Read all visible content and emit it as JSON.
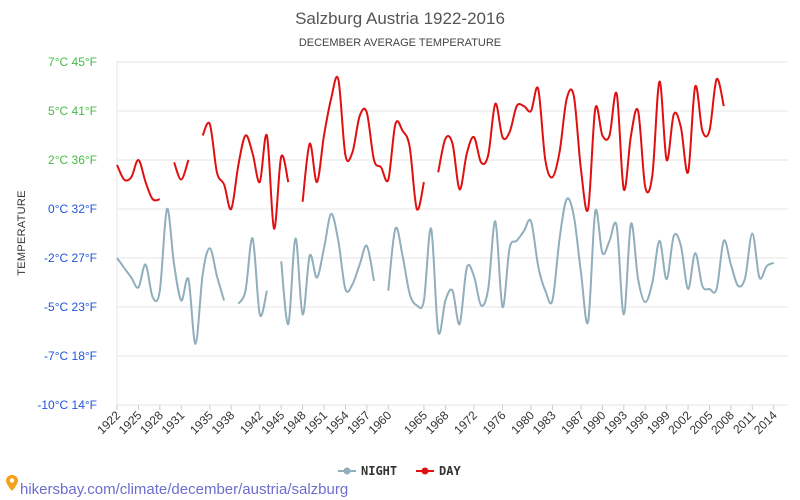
{
  "chart_data": {
    "type": "line",
    "title": "Salzburg Austria 1922-2016",
    "subtitle": "DECEMBER AVERAGE TEMPERATURE",
    "ylabel": "TEMPERATURE",
    "xlabel": "",
    "ylim": [
      -10,
      7
    ],
    "xlim": [
      1922,
      2016
    ],
    "grid": true,
    "legend_position": "bottom-center",
    "y_ticks": [
      {
        "value": 7,
        "label": "7°C 45°F",
        "color": "#44bb44"
      },
      {
        "value": 5,
        "label": "5°C 41°F",
        "color": "#44bb44"
      },
      {
        "value": 2,
        "label": "2°C 36°F",
        "color": "#44bb44"
      },
      {
        "value": 0,
        "label": "0°C 32°F",
        "color": "#2255dd"
      },
      {
        "value": -2,
        "label": "-2°C 27°F",
        "color": "#2255dd"
      },
      {
        "value": -5,
        "label": "-5°C 23°F",
        "color": "#2255dd"
      },
      {
        "value": -7,
        "label": "-7°C 18°F",
        "color": "#2255dd"
      },
      {
        "value": -10,
        "label": "-10°C 14°F",
        "color": "#2255dd"
      }
    ],
    "x_ticks": [
      "1922",
      "1925",
      "1928",
      "1931",
      "1935",
      "1938",
      "1942",
      "1945",
      "1948",
      "1951",
      "1954",
      "1957",
      "1960",
      "1965",
      "1968",
      "1972",
      "1976",
      "1980",
      "1983",
      "1987",
      "1990",
      "1993",
      "1996",
      "1999",
      "2002",
      "2005",
      "2008",
      "2011",
      "2014"
    ],
    "series": [
      {
        "name": "NIGHT",
        "color": "#90aebb",
        "points": [
          [
            1922,
            -2
          ],
          [
            1923,
            -2.6
          ],
          [
            1924,
            -3.2
          ],
          [
            1925,
            -3.8
          ],
          [
            1926,
            -2.4
          ],
          [
            1927,
            -4.4
          ],
          [
            1928,
            -4
          ],
          [
            1929,
            0
          ],
          [
            1930,
            -2.4
          ],
          [
            1931,
            -4.6
          ],
          [
            1932,
            -3.3
          ],
          [
            1933,
            -6.5
          ],
          [
            1934,
            -3
          ],
          [
            1935,
            -1.6
          ],
          [
            1936,
            -3.1
          ],
          [
            1937,
            -4.6
          ],
          null,
          [
            1939,
            -4.8
          ],
          [
            1940,
            -4
          ],
          [
            1941,
            -1.2
          ],
          [
            1942,
            -5.3
          ],
          [
            1943,
            -4
          ],
          null,
          [
            1945,
            -2.2
          ],
          [
            1946,
            -5.7
          ],
          [
            1947,
            -1.2
          ],
          [
            1948,
            -5.3
          ],
          [
            1949,
            -1.9
          ],
          [
            1950,
            -3.2
          ],
          [
            1951,
            -1.6
          ],
          [
            1952,
            -0.2
          ],
          [
            1953,
            -1.3
          ],
          [
            1954,
            -3.9
          ],
          [
            1955,
            -3.6
          ],
          [
            1956,
            -2.4
          ],
          [
            1957,
            -1.5
          ],
          [
            1958,
            -3.4
          ],
          null,
          [
            1960,
            -4
          ],
          [
            1961,
            -0.8
          ],
          [
            1962,
            -1.9
          ],
          [
            1963,
            -4.2
          ],
          [
            1964,
            -4.9
          ],
          [
            1965,
            -4.6
          ],
          [
            1966,
            -0.8
          ],
          [
            1967,
            -6
          ],
          [
            1968,
            -4.6
          ],
          [
            1969,
            -4
          ],
          [
            1970,
            -5.7
          ],
          [
            1971,
            -2.6
          ],
          [
            1972,
            -3.1
          ],
          [
            1973,
            -4.9
          ],
          [
            1974,
            -3.9
          ],
          [
            1975,
            -0.5
          ],
          [
            1976,
            -5
          ],
          [
            1977,
            -1.6
          ],
          [
            1978,
            -1.3
          ],
          [
            1979,
            -0.9
          ],
          [
            1980,
            -0.5
          ],
          [
            1981,
            -2.5
          ],
          [
            1982,
            -4
          ],
          [
            1983,
            -4.6
          ],
          [
            1984,
            -1.2
          ],
          [
            1985,
            0.4
          ],
          [
            1986,
            -0.3
          ],
          [
            1987,
            -2.9
          ],
          [
            1988,
            -5.6
          ],
          [
            1989,
            -0.1
          ],
          [
            1990,
            -1.8
          ],
          [
            1991,
            -1.3
          ],
          [
            1992,
            -0.7
          ],
          [
            1993,
            -5.3
          ],
          [
            1994,
            -0.6
          ],
          [
            1995,
            -3.3
          ],
          [
            1996,
            -4.7
          ],
          [
            1997,
            -3.5
          ],
          [
            1998,
            -1.3
          ],
          [
            1999,
            -3.3
          ],
          [
            2000,
            -1.1
          ],
          [
            2001,
            -1.5
          ],
          [
            2002,
            -3.9
          ],
          [
            2003,
            -1.8
          ],
          [
            2004,
            -3.7
          ],
          [
            2005,
            -3.9
          ],
          [
            2006,
            -3.9
          ],
          [
            2007,
            -1.3
          ],
          [
            2008,
            -2.4
          ],
          [
            2009,
            -3.7
          ],
          [
            2010,
            -3.2
          ],
          [
            2011,
            -1
          ],
          [
            2012,
            -3.2
          ],
          [
            2013,
            -2.5
          ],
          [
            2014,
            -2.3
          ]
        ]
      },
      {
        "name": "DAY",
        "color": "#e01010",
        "points": [
          [
            1922,
            1.8
          ],
          [
            1923,
            1.2
          ],
          [
            1924,
            1.3
          ],
          [
            1925,
            2
          ],
          [
            1926,
            1.1
          ],
          [
            1927,
            0.4
          ],
          [
            1928,
            0.4
          ],
          null,
          [
            1930,
            1.9
          ],
          [
            1931,
            1.2
          ],
          [
            1932,
            2
          ],
          null,
          [
            1934,
            3.5
          ],
          [
            1935,
            4.2
          ],
          [
            1936,
            1.5
          ],
          [
            1937,
            1
          ],
          [
            1938,
            0
          ],
          [
            1939,
            1.8
          ],
          [
            1940,
            3.5
          ],
          [
            1941,
            2.4
          ],
          [
            1942,
            1.1
          ],
          [
            1943,
            3.5
          ],
          [
            1944,
            -0.8
          ],
          [
            1945,
            2.2
          ],
          [
            1946,
            1.1
          ],
          null,
          [
            1948,
            0.3
          ],
          [
            1949,
            3
          ],
          [
            1950,
            1.1
          ],
          [
            1951,
            3.5
          ],
          [
            1952,
            5.5
          ],
          [
            1953,
            6.3
          ],
          [
            1954,
            2.3
          ],
          [
            1955,
            2.5
          ],
          [
            1956,
            4.7
          ],
          [
            1957,
            4.9
          ],
          [
            1958,
            2
          ],
          [
            1959,
            1.7
          ],
          [
            1960,
            1.2
          ],
          [
            1961,
            4.2
          ],
          [
            1962,
            3.8
          ],
          [
            1963,
            2.8
          ],
          [
            1964,
            0
          ],
          [
            1965,
            1.1
          ],
          null,
          [
            1967,
            1.5
          ],
          [
            1968,
            3.3
          ],
          [
            1969,
            3
          ],
          [
            1970,
            0.8
          ],
          [
            1971,
            2.4
          ],
          [
            1972,
            3.4
          ],
          [
            1973,
            1.9
          ],
          [
            1974,
            2.3
          ],
          [
            1975,
            5.3
          ],
          [
            1976,
            3.4
          ],
          [
            1977,
            3.7
          ],
          [
            1978,
            5.2
          ],
          [
            1979,
            5.2
          ],
          [
            1980,
            5
          ],
          [
            1981,
            5.9
          ],
          [
            1982,
            2
          ],
          [
            1983,
            1.3
          ],
          [
            1984,
            2.5
          ],
          [
            1985,
            5.5
          ],
          [
            1986,
            5.6
          ],
          [
            1987,
            1.6
          ],
          [
            1988,
            0
          ],
          [
            1989,
            5.1
          ],
          [
            1990,
            3.5
          ],
          [
            1991,
            3.5
          ],
          [
            1992,
            5.7
          ],
          [
            1993,
            0.8
          ],
          [
            1994,
            3.5
          ],
          [
            1995,
            5
          ],
          [
            1996,
            0.9
          ],
          [
            1997,
            1.4
          ],
          [
            1998,
            6.2
          ],
          [
            1999,
            2
          ],
          [
            2000,
            4.8
          ],
          [
            2001,
            4
          ],
          [
            2002,
            1.5
          ],
          [
            2003,
            6
          ],
          [
            2004,
            3.8
          ],
          [
            2005,
            3.8
          ],
          [
            2006,
            6.3
          ],
          [
            2007,
            5.2
          ]
        ]
      }
    ]
  },
  "source": "hikersbay.com/climate/december/austria/salzburg"
}
